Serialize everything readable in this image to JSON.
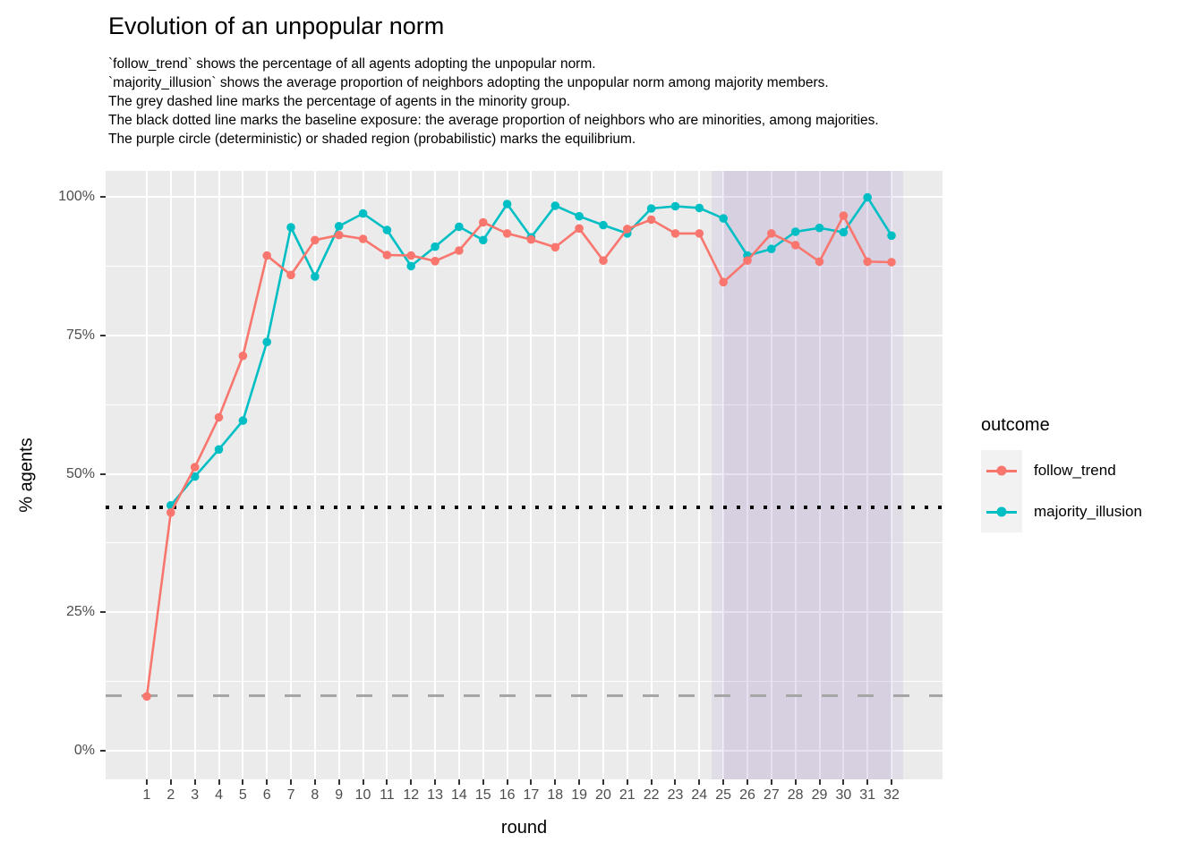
{
  "title": "Evolution of an unpopular norm",
  "subtitle_lines": [
    "`follow_trend` shows the percentage of all agents adopting the unpopular norm.",
    "`majority_illusion` shows the average proportion of neighbors adopting the unpopular norm among majority members.",
    "The grey dashed line marks the percentage of agents in the minority group.",
    "The black dotted line marks the baseline exposure: the average proportion of neighbors who are minorities, among majorities.",
    "The purple circle (deterministic) or shaded region (probabilistic) marks the equilibrium."
  ],
  "legend": {
    "title": "outcome",
    "items": [
      {
        "label": "follow_trend",
        "color": "#F8766D"
      },
      {
        "label": "majority_illusion",
        "color": "#00BFC4"
      }
    ]
  },
  "chart_data": {
    "type": "line",
    "x_label": "round",
    "y_label": "% agents",
    "x": [
      1,
      2,
      3,
      4,
      5,
      6,
      7,
      8,
      9,
      10,
      11,
      12,
      13,
      14,
      15,
      16,
      17,
      18,
      19,
      20,
      21,
      22,
      23,
      24,
      25,
      26,
      27,
      28,
      29,
      30,
      31,
      32
    ],
    "y_axis": {
      "ticks": [
        {
          "label": "100%",
          "value": 100
        },
        {
          "label": "75%",
          "value": 75
        },
        {
          "label": "50%",
          "value": 50
        },
        {
          "label": "25%",
          "value": 25
        },
        {
          "label": "0%",
          "value": 0
        }
      ],
      "minor_values": [
        12.5,
        37.5,
        62.5,
        87.5
      ],
      "lim": [
        -5,
        105
      ]
    },
    "series": [
      {
        "name": "follow_trend",
        "color": "#F8766D",
        "values": [
          9.8,
          43.0,
          51.2,
          60.2,
          71.3,
          89.4,
          85.9,
          92.2,
          93.1,
          92.4,
          89.5,
          89.4,
          88.4,
          90.3,
          95.4,
          93.4,
          92.3,
          90.9,
          94.3,
          88.5,
          94.2,
          95.9,
          93.4,
          93.4,
          84.6,
          88.5,
          93.4,
          91.3,
          88.3,
          96.6,
          88.3,
          88.2
        ]
      },
      {
        "name": "majority_illusion",
        "color": "#00BFC4",
        "values": [
          null,
          44.3,
          49.5,
          54.4,
          59.6,
          73.8,
          94.5,
          85.6,
          94.7,
          97.0,
          94.0,
          87.5,
          91.0,
          94.6,
          92.2,
          98.7,
          92.7,
          98.4,
          96.5,
          94.9,
          93.4,
          97.9,
          98.3,
          98.0,
          96.1,
          89.4,
          90.6,
          93.7,
          94.4,
          93.6,
          99.9,
          93.0
        ]
      }
    ],
    "reference_lines": [
      {
        "name": "minority-percentage",
        "y": 10,
        "style": "dashed",
        "color": "#A6A6A6"
      },
      {
        "name": "baseline-exposure",
        "y": 44,
        "style": "dotted",
        "color": "#000000"
      }
    ],
    "equilibrium_region": {
      "x_start": 24.5,
      "x_end": 32.5,
      "inner_x_start": 25,
      "inner_x_end": 32,
      "color": "rgba(124,96,189,0.10)"
    }
  },
  "colors": {
    "panel_background": "#EBEBEB",
    "gridline": "#ffffff",
    "tick_mark": "#333333",
    "tick_label": "#4D4D4D",
    "legend_key_background": "#F2F2F2"
  }
}
